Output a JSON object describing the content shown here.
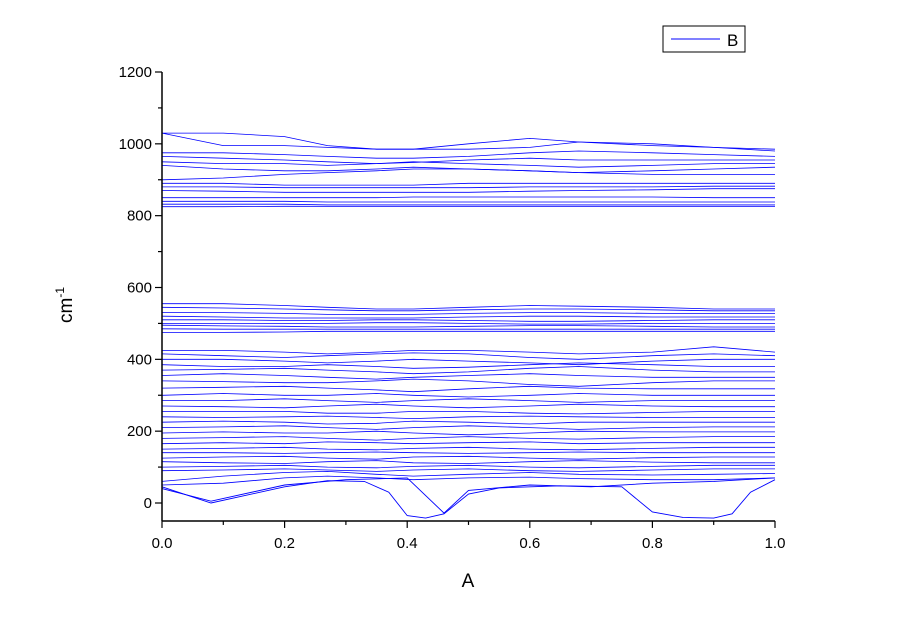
{
  "chart_data": {
    "type": "line",
    "title": "",
    "xlabel": "A",
    "ylabel": "cm",
    "ylabel_sup": "-1",
    "xlim": [
      0,
      1.0
    ],
    "ylim": [
      -50,
      1200
    ],
    "x_ticks": [
      "0.0",
      "0.2",
      "0.4",
      "0.6",
      "0.8",
      "1.0"
    ],
    "x_tick_values": [
      0,
      0.2,
      0.4,
      0.6,
      0.8,
      1.0
    ],
    "y_ticks": [
      "0",
      "200",
      "400",
      "600",
      "800",
      "1000",
      "1200"
    ],
    "y_tick_values": [
      0,
      200,
      400,
      600,
      800,
      1000,
      1200
    ],
    "grid": false,
    "legend": {
      "position": "top-right",
      "entries": [
        "B"
      ]
    },
    "color": "#0000ff",
    "series": [
      {
        "name": "B",
        "x": [
          0,
          0.1,
          0.2,
          0.27,
          0.35,
          0.41,
          0.5,
          0.6,
          0.68,
          0.8,
          0.9,
          1.0
        ],
        "bands": [
          [
            1030,
            1030,
            1020,
            995,
            985,
            985,
            1000,
            1015,
            1005,
            995,
            990,
            985
          ],
          [
            1030,
            995,
            995,
            990,
            985,
            985,
            985,
            990,
            1005,
            1000,
            990,
            980
          ],
          [
            975,
            975,
            970,
            965,
            960,
            960,
            965,
            975,
            980,
            975,
            970,
            965
          ],
          [
            965,
            960,
            955,
            950,
            945,
            948,
            955,
            960,
            955,
            955,
            955,
            955
          ],
          [
            950,
            945,
            945,
            940,
            945,
            950,
            945,
            940,
            935,
            940,
            945,
            945
          ],
          [
            940,
            930,
            925,
            925,
            930,
            935,
            930,
            925,
            920,
            925,
            930,
            935
          ],
          [
            900,
            905,
            915,
            920,
            925,
            930,
            930,
            925,
            920,
            915,
            915,
            915
          ],
          [
            890,
            890,
            885,
            885,
            885,
            885,
            890,
            890,
            890,
            890,
            890,
            890
          ],
          [
            880,
            880,
            878,
            878,
            878,
            878,
            878,
            880,
            880,
            880,
            882,
            882
          ],
          [
            870,
            868,
            865,
            865,
            865,
            865,
            865,
            868,
            870,
            872,
            875,
            875
          ],
          [
            850,
            850,
            850,
            850,
            850,
            852,
            852,
            852,
            852,
            852,
            850,
            850
          ],
          [
            840,
            840,
            840,
            838,
            838,
            838,
            838,
            838,
            838,
            838,
            838,
            838
          ],
          [
            832,
            832,
            832,
            830,
            830,
            830,
            830,
            830,
            830,
            830,
            830,
            830
          ],
          [
            825,
            825,
            826,
            826,
            826,
            826,
            826,
            826,
            826,
            826,
            826,
            826
          ],
          [
            555,
            555,
            550,
            545,
            540,
            540,
            545,
            550,
            548,
            545,
            540,
            540
          ],
          [
            545,
            543,
            540,
            538,
            535,
            535,
            538,
            540,
            540,
            538,
            535,
            535
          ],
          [
            530,
            530,
            528,
            525,
            525,
            525,
            528,
            530,
            530,
            528,
            528,
            528
          ],
          [
            520,
            518,
            515,
            515,
            515,
            515,
            518,
            520,
            520,
            518,
            518,
            518
          ],
          [
            510,
            510,
            508,
            508,
            510,
            510,
            508,
            506,
            506,
            508,
            510,
            510
          ],
          [
            500,
            500,
            500,
            500,
            502,
            502,
            500,
            498,
            498,
            500,
            500,
            500
          ],
          [
            495,
            493,
            492,
            490,
            490,
            490,
            492,
            494,
            494,
            492,
            490,
            490
          ],
          [
            485,
            484,
            484,
            484,
            484,
            484,
            484,
            484,
            484,
            484,
            484,
            484
          ],
          [
            475,
            475,
            476,
            478,
            478,
            478,
            478,
            478,
            478,
            478,
            478,
            478
          ],
          [
            425,
            425,
            420,
            415,
            420,
            425,
            425,
            420,
            415,
            420,
            435,
            420
          ],
          [
            415,
            410,
            405,
            410,
            415,
            418,
            415,
            405,
            400,
            410,
            415,
            410
          ],
          [
            400,
            400,
            395,
            390,
            395,
            400,
            395,
            390,
            385,
            395,
            400,
            400
          ],
          [
            385,
            380,
            380,
            385,
            380,
            375,
            378,
            385,
            390,
            385,
            380,
            380
          ],
          [
            370,
            372,
            375,
            370,
            365,
            360,
            365,
            375,
            380,
            370,
            365,
            365
          ],
          [
            355,
            360,
            355,
            350,
            345,
            350,
            355,
            360,
            355,
            350,
            350,
            350
          ],
          [
            340,
            338,
            335,
            335,
            340,
            345,
            340,
            330,
            325,
            335,
            340,
            340
          ],
          [
            320,
            322,
            325,
            320,
            315,
            310,
            318,
            325,
            320,
            318,
            318,
            318
          ],
          [
            300,
            305,
            300,
            300,
            305,
            300,
            295,
            300,
            305,
            300,
            300,
            300
          ],
          [
            285,
            285,
            290,
            285,
            280,
            285,
            290,
            285,
            280,
            285,
            285,
            285
          ],
          [
            270,
            268,
            265,
            270,
            275,
            270,
            265,
            270,
            275,
            270,
            268,
            268
          ],
          [
            255,
            255,
            255,
            250,
            250,
            255,
            255,
            250,
            248,
            252,
            255,
            255
          ],
          [
            240,
            238,
            240,
            242,
            238,
            235,
            240,
            242,
            240,
            238,
            238,
            238
          ],
          [
            225,
            228,
            225,
            220,
            222,
            228,
            225,
            220,
            225,
            225,
            225,
            225
          ],
          [
            210,
            212,
            215,
            210,
            205,
            210,
            215,
            210,
            205,
            210,
            212,
            212
          ],
          [
            195,
            198,
            195,
            195,
            200,
            195,
            190,
            195,
            200,
            198,
            198,
            198
          ],
          [
            180,
            182,
            185,
            180,
            175,
            180,
            185,
            180,
            178,
            182,
            185,
            185
          ],
          [
            165,
            168,
            165,
            170,
            168,
            165,
            168,
            170,
            165,
            168,
            168,
            168
          ],
          [
            150,
            152,
            155,
            150,
            148,
            152,
            155,
            150,
            148,
            152,
            155,
            155
          ],
          [
            140,
            140,
            138,
            140,
            142,
            140,
            138,
            140,
            142,
            140,
            140,
            140
          ],
          [
            125,
            128,
            130,
            125,
            122,
            128,
            130,
            125,
            122,
            126,
            128,
            128
          ],
          [
            115,
            112,
            110,
            115,
            118,
            112,
            110,
            115,
            118,
            114,
            112,
            112
          ],
          [
            100,
            102,
            105,
            100,
            98,
            102,
            105,
            100,
            98,
            102,
            105,
            105
          ],
          [
            90,
            92,
            95,
            92,
            88,
            92,
            95,
            90,
            88,
            92,
            95,
            95
          ],
          [
            60,
            75,
            85,
            88,
            80,
            75,
            80,
            85,
            80,
            78,
            80,
            82
          ],
          [
            50,
            55,
            70,
            75,
            70,
            65,
            70,
            72,
            68,
            65,
            65,
            70
          ]
        ],
        "acoustic_bands": [
          {
            "x": [
              0,
              0.08,
              0.2,
              0.27,
              0.33,
              0.37,
              0.4,
              0.43,
              0.46,
              0.5,
              0.55,
              0.65,
              0.75,
              0.8,
              0.85,
              0.9,
              0.93,
              0.96,
              1.0
            ],
            "y": [
              45,
              0,
              45,
              62,
              60,
              30,
              -35,
              -42,
              -30,
              25,
              42,
              48,
              45,
              -25,
              -40,
              -42,
              -30,
              30,
              65
            ]
          },
          {
            "x": [
              0,
              0.08,
              0.2,
              0.3,
              0.4,
              0.46,
              0.5,
              0.6,
              0.7,
              0.8,
              0.9,
              1.0
            ],
            "y": [
              40,
              5,
              50,
              65,
              70,
              -28,
              35,
              50,
              45,
              55,
              60,
              70
            ]
          }
        ]
      }
    ]
  }
}
